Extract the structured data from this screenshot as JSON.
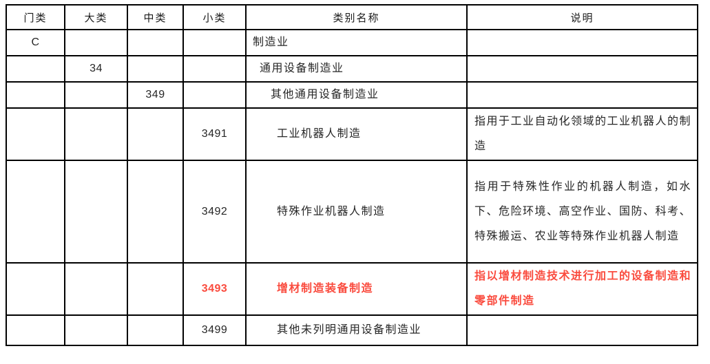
{
  "table": {
    "headers": [
      "门类",
      "大类",
      "中类",
      "小类",
      "类别名称",
      "说明"
    ],
    "highlight_color": "#fa4b3e",
    "rows": [
      {
        "level": 1,
        "code": "C",
        "name": "制造业",
        "desc": "",
        "highlight": false
      },
      {
        "level": 2,
        "code": "34",
        "name": "通用设备制造业",
        "desc": "",
        "highlight": false
      },
      {
        "level": 3,
        "code": "349",
        "name": "其他通用设备制造业",
        "desc": "",
        "highlight": false
      },
      {
        "level": 4,
        "code": "3491",
        "name": "工业机器人制造",
        "desc": "指用于工业自动化领域的工业机器人的制造",
        "highlight": false
      },
      {
        "level": 4,
        "code": "3492",
        "name": "特殊作业机器人制造",
        "desc": "指用于特殊性作业的机器人制造，如水下、危险环境、高空作业、国防、科考、特殊搬运、农业等特殊作业机器人制造",
        "highlight": false
      },
      {
        "level": 4,
        "code": "3493",
        "name": "增材制造装备制造",
        "desc": "指以增材制造技术进行加工的设备制造和零部件制造",
        "highlight": true
      },
      {
        "level": 4,
        "code": "3499",
        "name": "其他未列明通用设备制造业",
        "desc": "",
        "highlight": false
      }
    ]
  }
}
